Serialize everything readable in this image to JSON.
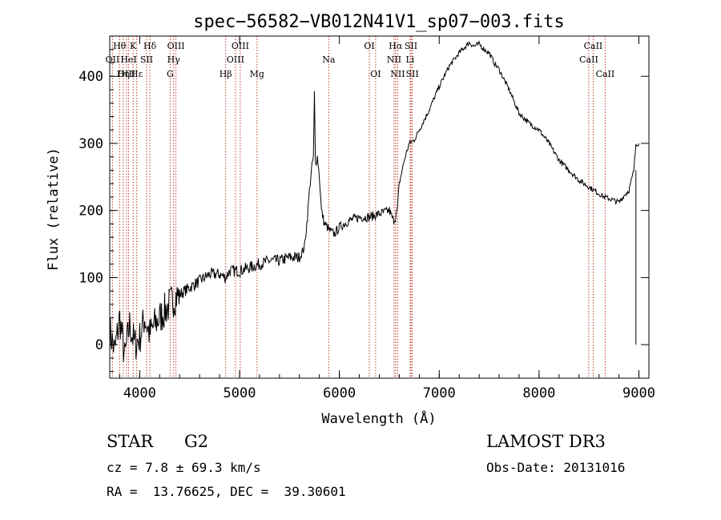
{
  "chart_data": {
    "type": "line",
    "title": "spec−56582−VB012N41V1_sp07−003.fits",
    "xlabel": "Wavelength (Å)",
    "ylabel": "Flux (relative)",
    "xlim": [
      3700,
      9100
    ],
    "ylim": [
      -50,
      460
    ],
    "xticks": [
      4000,
      5000,
      6000,
      7000,
      8000,
      9000
    ],
    "yticks": [
      0,
      100,
      200,
      300,
      400
    ],
    "series": [
      {
        "name": "spectrum",
        "color": "#000000",
        "x": [
          3700,
          3750,
          3800,
          3850,
          3900,
          3950,
          4000,
          4050,
          4100,
          4150,
          4200,
          4250,
          4300,
          4350,
          4400,
          4500,
          4600,
          4700,
          4800,
          4860,
          4900,
          5000,
          5100,
          5200,
          5300,
          5400,
          5500,
          5600,
          5650,
          5680,
          5700,
          5720,
          5740,
          5750,
          5760,
          5780,
          5800,
          5820,
          5850,
          5880,
          5900,
          5950,
          6000,
          6050,
          6100,
          6200,
          6300,
          6400,
          6500,
          6540,
          6562,
          6580,
          6600,
          6650,
          6700,
          6750,
          6800,
          6900,
          7000,
          7100,
          7200,
          7300,
          7350,
          7400,
          7450,
          7500,
          7550,
          7600,
          7700,
          7800,
          7900,
          8000,
          8100,
          8200,
          8300,
          8400,
          8500,
          8550,
          8600,
          8650,
          8700,
          8750,
          8800,
          8850,
          8900,
          8950,
          8970,
          9000
        ],
        "y": [
          20,
          -10,
          40,
          -20,
          30,
          0,
          10,
          40,
          15,
          30,
          40,
          50,
          60,
          70,
          75,
          85,
          95,
          105,
          105,
          100,
          110,
          110,
          115,
          120,
          125,
          125,
          130,
          130,
          145,
          190,
          230,
          260,
          280,
          375,
          270,
          280,
          250,
          200,
          180,
          175,
          170,
          165,
          175,
          180,
          185,
          190,
          190,
          195,
          200,
          185,
          190,
          200,
          240,
          275,
          300,
          305,
          320,
          350,
          385,
          415,
          435,
          450,
          445,
          448,
          440,
          435,
          420,
          410,
          380,
          345,
          330,
          320,
          300,
          275,
          260,
          245,
          235,
          230,
          225,
          220,
          218,
          215,
          212,
          222,
          230,
          260,
          300,
          300
        ]
      }
    ],
    "lines": [
      {
        "label": "Hθ",
        "x": 3798,
        "row": 0
      },
      {
        "label": "OII",
        "x": 3727,
        "row": 1
      },
      {
        "label": "OIII",
        "x": 3869,
        "row": 2
      },
      {
        "label": "Hη",
        "x": 3835,
        "row": 2
      },
      {
        "label": "K",
        "x": 3934,
        "row": 0
      },
      {
        "label": "HeI",
        "x": 3889,
        "row": 1
      },
      {
        "label": "Hε",
        "x": 3970,
        "row": 2
      },
      {
        "label": "SII",
        "x": 4069,
        "row": 1
      },
      {
        "label": "Hδ",
        "x": 4102,
        "row": 0
      },
      {
        "label": "OIII",
        "x": 4363,
        "row": 0
      },
      {
        "label": "Hγ",
        "x": 4340,
        "row": 1
      },
      {
        "label": "G",
        "x": 4305,
        "row": 2
      },
      {
        "label": "Hβ",
        "x": 4861,
        "row": 2
      },
      {
        "label": "OIII",
        "x": 5007,
        "row": 0
      },
      {
        "label": "OIII",
        "x": 4959,
        "row": 1
      },
      {
        "label": "Mg",
        "x": 5175,
        "row": 2
      },
      {
        "label": "Na",
        "x": 5893,
        "row": 1
      },
      {
        "label": "OI",
        "x": 6300,
        "row": 0
      },
      {
        "label": "OI",
        "x": 6363,
        "row": 2
      },
      {
        "label": "Hα",
        "x": 6563,
        "row": 0
      },
      {
        "label": "NII",
        "x": 6548,
        "row": 1
      },
      {
        "label": "NII",
        "x": 6584,
        "row": 2
      },
      {
        "label": "SII",
        "x": 6717,
        "row": 0
      },
      {
        "label": "Li",
        "x": 6708,
        "row": 1
      },
      {
        "label": "SII",
        "x": 6731,
        "row": 2
      },
      {
        "label": "CaII",
        "x": 8542,
        "row": 0
      },
      {
        "label": "CaII",
        "x": 8498,
        "row": 1
      },
      {
        "label": "CaII",
        "x": 8662,
        "row": 2
      }
    ]
  },
  "info": {
    "object_class": "STAR",
    "subclass": "G2",
    "survey": "LAMOST DR3",
    "redshift": "cz = 7.8 ± 69.3 km/s",
    "obs_date": "Obs-Date: 20131016",
    "coords": "RA =  13.76625, DEC =  39.30601"
  }
}
